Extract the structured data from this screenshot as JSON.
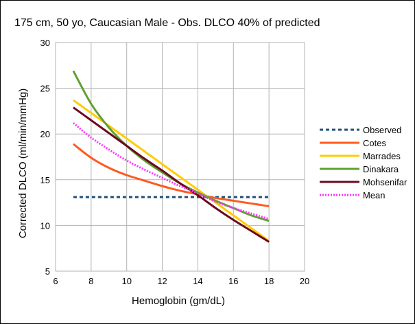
{
  "chart_data": {
    "type": "line",
    "title": "175 cm, 50 yo, Caucasian Male - Obs. DLCO 40% of predicted",
    "xlabel": "Hemoglobin (gm/dL)",
    "ylabel": "Corrected DLCO (ml/min/mmHg)",
    "xlim": [
      6,
      20
    ],
    "ylim": [
      5,
      30
    ],
    "x_ticks": [
      6,
      8,
      10,
      12,
      14,
      16,
      18,
      20
    ],
    "y_ticks": [
      5,
      10,
      15,
      20,
      25,
      30
    ],
    "grid": true,
    "legend_position": "right",
    "series": [
      {
        "name": "Observed",
        "color": "#1f4e79",
        "dash": "dashed",
        "points": [
          [
            7,
            13.1
          ],
          [
            18,
            13.1
          ]
        ]
      },
      {
        "name": "Cotes",
        "color": "#ff5a1f",
        "dash": "solid",
        "points": [
          [
            7,
            18.9
          ],
          [
            8,
            17.4
          ],
          [
            9,
            16.3
          ],
          [
            10,
            15.5
          ],
          [
            11,
            14.9
          ],
          [
            12,
            14.3
          ],
          [
            13,
            13.8
          ],
          [
            14,
            13.4
          ],
          [
            15,
            13.0
          ],
          [
            16,
            12.7
          ],
          [
            17,
            12.4
          ],
          [
            18,
            12.1
          ]
        ]
      },
      {
        "name": "Marrades",
        "color": "#ffcc00",
        "dash": "solid",
        "points": [
          [
            7,
            23.7
          ],
          [
            8,
            22.3
          ],
          [
            9,
            20.9
          ],
          [
            10,
            19.5
          ],
          [
            11,
            18.1
          ],
          [
            12,
            16.7
          ],
          [
            13,
            15.3
          ],
          [
            14,
            13.9
          ],
          [
            15,
            12.5
          ],
          [
            16,
            11.1
          ],
          [
            17,
            9.7
          ],
          [
            18,
            8.3
          ]
        ]
      },
      {
        "name": "Dinakara",
        "color": "#5fa12f",
        "dash": "solid",
        "points": [
          [
            7,
            26.9
          ],
          [
            8,
            23.3
          ],
          [
            9,
            20.7
          ],
          [
            10,
            18.7
          ],
          [
            11,
            17.1
          ],
          [
            12,
            15.8
          ],
          [
            13,
            14.6
          ],
          [
            14,
            13.6
          ],
          [
            15,
            12.7
          ],
          [
            16,
            11.9
          ],
          [
            17,
            11.1
          ],
          [
            18,
            10.5
          ]
        ]
      },
      {
        "name": "Mohsenifar",
        "color": "#6b0a1e",
        "dash": "solid",
        "points": [
          [
            7,
            22.9
          ],
          [
            8,
            21.5
          ],
          [
            9,
            20.1
          ],
          [
            10,
            18.7
          ],
          [
            11,
            17.3
          ],
          [
            12,
            16.0
          ],
          [
            13,
            14.6
          ],
          [
            14,
            13.3
          ],
          [
            15,
            11.9
          ],
          [
            16,
            10.6
          ],
          [
            17,
            9.4
          ],
          [
            18,
            8.2
          ]
        ]
      },
      {
        "name": "Mean",
        "color": "#ff33ff",
        "dash": "dotted",
        "points": [
          [
            7,
            21.2
          ],
          [
            8,
            19.6
          ],
          [
            9,
            18.3
          ],
          [
            10,
            17.1
          ],
          [
            11,
            16.1
          ],
          [
            12,
            15.2
          ],
          [
            13,
            14.3
          ],
          [
            14,
            13.5
          ],
          [
            15,
            12.6
          ],
          [
            16,
            11.9
          ],
          [
            17,
            11.3
          ],
          [
            18,
            10.7
          ]
        ]
      }
    ]
  }
}
